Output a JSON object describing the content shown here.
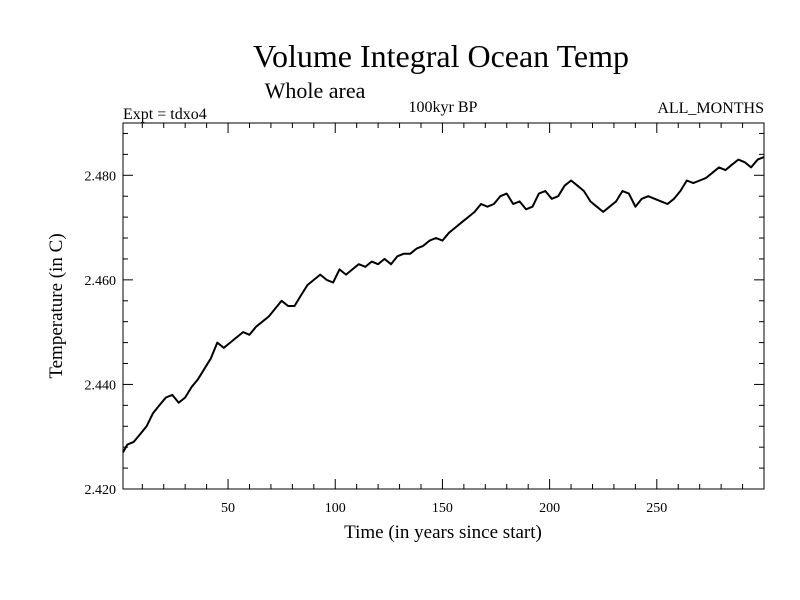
{
  "chart_data": {
    "type": "line",
    "title": "Volume Integral Ocean Temp",
    "subtitle": "Whole area",
    "annotations": {
      "left": "Expt = tdxo4",
      "center": "100kyr BP",
      "right": "ALL_MONTHS"
    },
    "xlabel": "Time (in years since start)",
    "ylabel": "Temperature (in C)",
    "xlim": [
      1,
      300
    ],
    "ylim": [
      2.42,
      2.49
    ],
    "xticks": [
      50,
      100,
      150,
      200,
      250
    ],
    "xtick_labels": [
      "50",
      "100",
      "150",
      "200",
      "250"
    ],
    "yticks": [
      2.42,
      2.44,
      2.46,
      2.48
    ],
    "ytick_labels": [
      "2.420",
      "2.440",
      "2.460",
      "2.480"
    ],
    "grid": false,
    "series": [
      {
        "values_x": [
          1,
          3,
          6,
          9,
          12,
          15,
          18,
          21,
          24,
          27,
          30,
          33,
          36,
          39,
          42,
          45,
          48,
          51,
          54,
          57,
          60,
          63,
          66,
          69,
          72,
          75,
          78,
          81,
          84,
          87,
          90,
          93,
          96,
          99,
          102,
          105,
          108,
          111,
          114,
          117,
          120,
          123,
          126,
          129,
          132,
          135,
          138,
          141,
          144,
          147,
          150,
          153,
          156,
          159,
          162,
          165,
          168,
          171,
          174,
          177,
          180,
          183,
          186,
          189,
          192,
          195,
          198,
          201,
          204,
          207,
          210,
          213,
          216,
          219,
          222,
          225,
          228,
          231,
          234,
          237,
          240,
          243,
          246,
          249,
          252,
          255,
          258,
          261,
          264,
          267,
          270,
          273,
          276,
          279,
          282,
          285,
          288,
          291,
          294,
          297,
          300
        ],
        "values_y": [
          2.427,
          2.4285,
          2.429,
          2.4305,
          2.432,
          2.4345,
          2.436,
          2.4375,
          2.438,
          2.4365,
          2.4375,
          2.4395,
          2.441,
          2.443,
          2.445,
          2.448,
          2.447,
          2.448,
          2.449,
          2.45,
          2.4495,
          2.451,
          2.452,
          2.453,
          2.4545,
          2.456,
          2.455,
          2.455,
          2.457,
          2.459,
          2.46,
          2.461,
          2.46,
          2.4595,
          2.462,
          2.461,
          2.462,
          2.463,
          2.4625,
          2.4635,
          2.463,
          2.464,
          2.463,
          2.4645,
          2.465,
          2.465,
          2.466,
          2.4665,
          2.4675,
          2.468,
          2.4675,
          2.469,
          2.47,
          2.471,
          2.472,
          2.473,
          2.4745,
          2.474,
          2.4745,
          2.476,
          2.4765,
          2.4745,
          2.475,
          2.4735,
          2.474,
          2.4765,
          2.477,
          2.4755,
          2.476,
          2.478,
          2.479,
          2.478,
          2.477,
          2.475,
          2.474,
          2.473,
          2.474,
          2.475,
          2.477,
          2.4765,
          2.474,
          2.4755,
          2.476,
          2.4755,
          2.475,
          2.4745,
          2.4755,
          2.477,
          2.479,
          2.4785,
          2.479,
          2.4795,
          2.4805,
          2.4815,
          2.481,
          2.482,
          2.483,
          2.4825,
          2.4815,
          2.483,
          2.4835
        ]
      }
    ]
  }
}
